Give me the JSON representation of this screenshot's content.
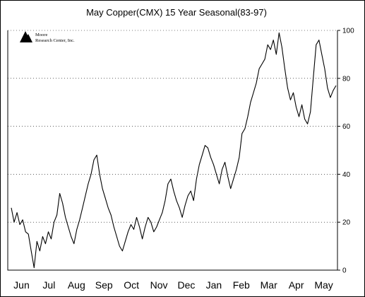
{
  "chart_data": {
    "type": "line",
    "title": "May Copper(CMX) 15 Year Seasonal(83-97)",
    "logo": {
      "line1": "Moore",
      "line2": "Research Center, Inc."
    },
    "x_labels": [
      "Jun",
      "Jul",
      "Aug",
      "Sep",
      "Oct",
      "Nov",
      "Dec",
      "Jan",
      "Feb",
      "Mar",
      "Apr",
      "May"
    ],
    "y_ticks": [
      0,
      20,
      40,
      60,
      80,
      100
    ],
    "ylim": [
      0,
      100
    ],
    "grid": "horizontal dotted",
    "series": [
      {
        "values": [
          26,
          20,
          24,
          19,
          21,
          16,
          15,
          8,
          1,
          12,
          8,
          14,
          11,
          16,
          13,
          20,
          23,
          32,
          28,
          22,
          18,
          14,
          11,
          17,
          21,
          26,
          31,
          36,
          40,
          46,
          48,
          40,
          34,
          30,
          26,
          23,
          18,
          14,
          10,
          8,
          12,
          16,
          19,
          17,
          22,
          18,
          13,
          18,
          22,
          20,
          16,
          18,
          21,
          24,
          29,
          36,
          38,
          33,
          29,
          26,
          22,
          27,
          31,
          33,
          29,
          38,
          44,
          48,
          52,
          51,
          47,
          44,
          40,
          36,
          42,
          45,
          39,
          34,
          38,
          42,
          47,
          57,
          59,
          64,
          70,
          74,
          78,
          84,
          86,
          88,
          94,
          92,
          96,
          90,
          99,
          93,
          84,
          76,
          71,
          74,
          68,
          64,
          69,
          63,
          61,
          66,
          80,
          94,
          96,
          90,
          84,
          76,
          72,
          75,
          77
        ]
      }
    ]
  }
}
